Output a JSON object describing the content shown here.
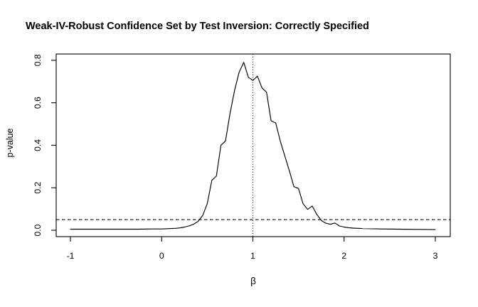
{
  "title": "Weak-IV-Robust Confidence Set by Test Inversion: Correctly Specified",
  "colors": {
    "background": "#ffffff",
    "foreground": "#000000"
  },
  "chart_data": {
    "type": "line",
    "title": "Weak-IV-Robust Confidence Set by Test Inversion: Correctly Specified",
    "xlabel": "β",
    "ylabel": "p-value",
    "xlim": [
      -1,
      3
    ],
    "ylim": [
      0,
      0.8
    ],
    "grid": false,
    "legend": "none",
    "x_ticks": {
      "values": [
        -1,
        0,
        1,
        2,
        3
      ],
      "labels": [
        "-1",
        "0",
        "1",
        "2",
        "3"
      ]
    },
    "y_ticks": {
      "values": [
        0,
        0.2,
        0.4,
        0.6,
        0.8
      ],
      "labels": [
        "0.0",
        "0.2",
        "0.4",
        "0.6",
        "0.8"
      ]
    },
    "reference_lines": [
      {
        "orientation": "horizontal",
        "value": 0.05,
        "style": "dashed"
      },
      {
        "orientation": "vertical",
        "value": 1.0,
        "style": "dotted"
      }
    ],
    "series": [
      {
        "name": "p-value curve",
        "color": "#000000",
        "x": [
          -1.0,
          -0.75,
          -0.5,
          -0.25,
          -0.1,
          0.0,
          0.05,
          0.1,
          0.15,
          0.2,
          0.25,
          0.3,
          0.35,
          0.4,
          0.45,
          0.5,
          0.55,
          0.6,
          0.65,
          0.7,
          0.75,
          0.8,
          0.85,
          0.9,
          0.95,
          1.0,
          1.05,
          1.1,
          1.15,
          1.2,
          1.25,
          1.3,
          1.35,
          1.4,
          1.45,
          1.5,
          1.55,
          1.6,
          1.65,
          1.7,
          1.75,
          1.8,
          1.85,
          1.9,
          1.95,
          2.0,
          2.05,
          2.1,
          2.2,
          2.4,
          2.6,
          2.8,
          3.0
        ],
        "y": [
          0.005,
          0.005,
          0.005,
          0.005,
          0.006,
          0.006,
          0.007,
          0.008,
          0.009,
          0.011,
          0.015,
          0.02,
          0.028,
          0.042,
          0.07,
          0.125,
          0.235,
          0.255,
          0.4,
          0.42,
          0.55,
          0.66,
          0.745,
          0.79,
          0.72,
          0.705,
          0.725,
          0.67,
          0.65,
          0.515,
          0.505,
          0.42,
          0.35,
          0.28,
          0.205,
          0.197,
          0.125,
          0.098,
          0.114,
          0.075,
          0.046,
          0.033,
          0.028,
          0.034,
          0.02,
          0.015,
          0.012,
          0.01,
          0.008,
          0.006,
          0.005,
          0.004,
          0.003
        ]
      }
    ]
  }
}
